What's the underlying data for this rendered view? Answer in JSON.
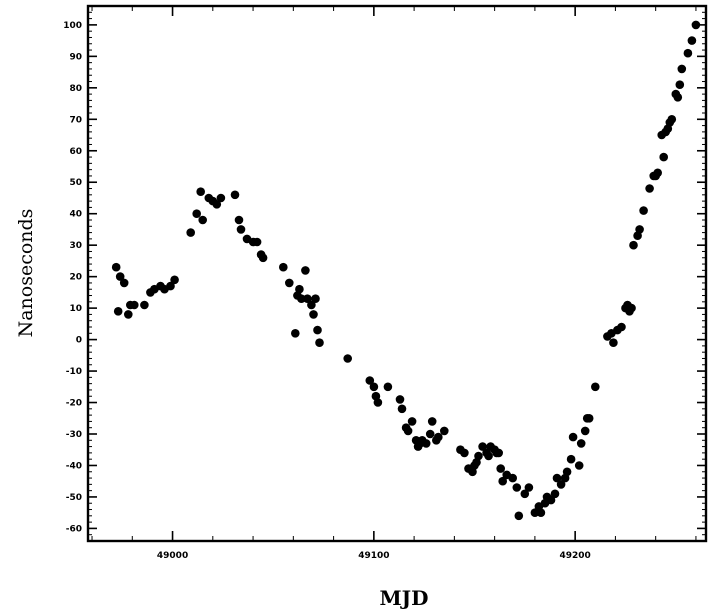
{
  "chart_data": {
    "type": "scatter",
    "title": "",
    "xlabel": "MJD",
    "ylabel": "Nanoseconds",
    "xlim": [
      48958,
      49265
    ],
    "ylim": [
      -64,
      106
    ],
    "x_ticks": [
      49000,
      49100,
      49200
    ],
    "x_tick_labels": [
      "49000",
      "49100",
      "49200"
    ],
    "y_ticks": [
      -60,
      -50,
      -40,
      -30,
      -20,
      -10,
      0,
      10,
      20,
      30,
      40,
      50,
      60,
      70,
      80,
      90,
      100
    ],
    "y_tick_labels": [
      "-60",
      "-50",
      "-40",
      "-30",
      "-20",
      "-10",
      "0",
      "10",
      "20",
      "30",
      "40",
      "50",
      "60",
      "70",
      "80",
      "90",
      "100"
    ],
    "grid": false,
    "marker_color": "#000000",
    "series": [
      {
        "points": [
          [
            48972,
            23
          ],
          [
            48973,
            9
          ],
          [
            48974,
            20
          ],
          [
            48976,
            18
          ],
          [
            48978,
            8
          ],
          [
            48979,
            11
          ],
          [
            48981,
            11
          ],
          [
            48986,
            11
          ],
          [
            48989,
            15
          ],
          [
            48991,
            16
          ],
          [
            48994,
            17
          ],
          [
            48996,
            16
          ],
          [
            48999,
            17
          ],
          [
            49001,
            19
          ],
          [
            49009,
            34
          ],
          [
            49012,
            40
          ],
          [
            49014,
            47
          ],
          [
            49015,
            38
          ],
          [
            49018,
            45
          ],
          [
            49020,
            44
          ],
          [
            49022,
            43
          ],
          [
            49024,
            45
          ],
          [
            49031,
            46
          ],
          [
            49033,
            38
          ],
          [
            49034,
            35
          ],
          [
            49037,
            32
          ],
          [
            49040,
            31
          ],
          [
            49042,
            31
          ],
          [
            49044,
            27
          ],
          [
            49045,
            26
          ],
          [
            49055,
            23
          ],
          [
            49058,
            18
          ],
          [
            49061,
            2
          ],
          [
            49062,
            14
          ],
          [
            49063,
            16
          ],
          [
            49064,
            13
          ],
          [
            49066,
            22
          ],
          [
            49067,
            13
          ],
          [
            49069,
            11
          ],
          [
            49070,
            8
          ],
          [
            49071,
            13
          ],
          [
            49072,
            3
          ],
          [
            49073,
            -1
          ],
          [
            49087,
            -6
          ],
          [
            49098,
            -13
          ],
          [
            49100,
            -15
          ],
          [
            49101,
            -18
          ],
          [
            49102,
            -20
          ],
          [
            49107,
            -15
          ],
          [
            49113,
            -19
          ],
          [
            49114,
            -22
          ],
          [
            49116,
            -28
          ],
          [
            49117,
            -29
          ],
          [
            49119,
            -26
          ],
          [
            49121,
            -32
          ],
          [
            49122,
            -34
          ],
          [
            49123,
            -33
          ],
          [
            49124,
            -32
          ],
          [
            49126,
            -33
          ],
          [
            49128,
            -30
          ],
          [
            49129,
            -26
          ],
          [
            49131,
            -32
          ],
          [
            49132,
            -31
          ],
          [
            49135,
            -29
          ],
          [
            49143,
            -35
          ],
          [
            49145,
            -36
          ],
          [
            49147,
            -41
          ],
          [
            49149,
            -42
          ],
          [
            49150,
            -40
          ],
          [
            49151,
            -39
          ],
          [
            49152,
            -37
          ],
          [
            49154,
            -34
          ],
          [
            49156,
            -36
          ],
          [
            49157,
            -37
          ],
          [
            49158,
            -34
          ],
          [
            49160,
            -35
          ],
          [
            49161,
            -36
          ],
          [
            49162,
            -36
          ],
          [
            49163,
            -41
          ],
          [
            49164,
            -45
          ],
          [
            49166,
            -43
          ],
          [
            49169,
            -44
          ],
          [
            49171,
            -47
          ],
          [
            49172,
            -56
          ],
          [
            49175,
            -49
          ],
          [
            49177,
            -47
          ],
          [
            49180,
            -55
          ],
          [
            49182,
            -53
          ],
          [
            49183,
            -55
          ],
          [
            49185,
            -52
          ],
          [
            49186,
            -50
          ],
          [
            49188,
            -51
          ],
          [
            49190,
            -49
          ],
          [
            49191,
            -44
          ],
          [
            49193,
            -46
          ],
          [
            49195,
            -44
          ],
          [
            49196,
            -42
          ],
          [
            49198,
            -38
          ],
          [
            49199,
            -31
          ],
          [
            49202,
            -40
          ],
          [
            49203,
            -33
          ],
          [
            49205,
            -29
          ],
          [
            49206,
            -25
          ],
          [
            49207,
            -25
          ],
          [
            49210,
            -15
          ],
          [
            49216,
            1
          ],
          [
            49218,
            2
          ],
          [
            49219,
            -1
          ],
          [
            49221,
            3
          ],
          [
            49223,
            4
          ],
          [
            49225,
            10
          ],
          [
            49226,
            11
          ],
          [
            49227,
            9
          ],
          [
            49228,
            10
          ],
          [
            49229,
            30
          ],
          [
            49231,
            33
          ],
          [
            49232,
            35
          ],
          [
            49234,
            41
          ],
          [
            49237,
            48
          ],
          [
            49239,
            52
          ],
          [
            49240,
            52
          ],
          [
            49241,
            53
          ],
          [
            49243,
            65
          ],
          [
            49244,
            58
          ],
          [
            49245,
            66
          ],
          [
            49246,
            67
          ],
          [
            49247,
            69
          ],
          [
            49248,
            70
          ],
          [
            49250,
            78
          ],
          [
            49251,
            77
          ],
          [
            49252,
            81
          ],
          [
            49253,
            86
          ],
          [
            49256,
            91
          ],
          [
            49258,
            95
          ],
          [
            49260,
            100
          ]
        ]
      }
    ]
  }
}
